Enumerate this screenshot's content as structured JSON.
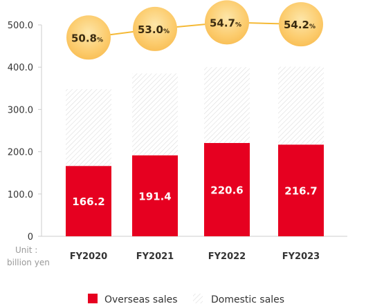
{
  "chart_data": {
    "type": "bar",
    "stacked": true,
    "categories": [
      "FY2020",
      "FY2021",
      "FY2022",
      "FY2023"
    ],
    "series": [
      {
        "name": "Overseas sales",
        "values": [
          166.2,
          191.4,
          220.6,
          216.7
        ],
        "color": "#e60020"
      },
      {
        "name": "Domestic sales",
        "values": [
          181.8,
          193.6,
          179.4,
          184.3
        ],
        "pattern": "diagonal-hatch"
      }
    ],
    "ratio_series": {
      "values": [
        50.8,
        53.0,
        54.7,
        54.2
      ],
      "labels": [
        "50.8",
        "53.0",
        "54.7",
        "54.2"
      ],
      "unit": "%",
      "color": "#fcc96a"
    },
    "yticks": [
      "500.0",
      "400.0",
      "300.0",
      "200.0",
      "100.0",
      "0"
    ],
    "ylim": [
      0,
      500
    ],
    "unit_label": [
      "Unit :",
      "billion yen"
    ],
    "grid": false,
    "legend_position": "bottom"
  }
}
